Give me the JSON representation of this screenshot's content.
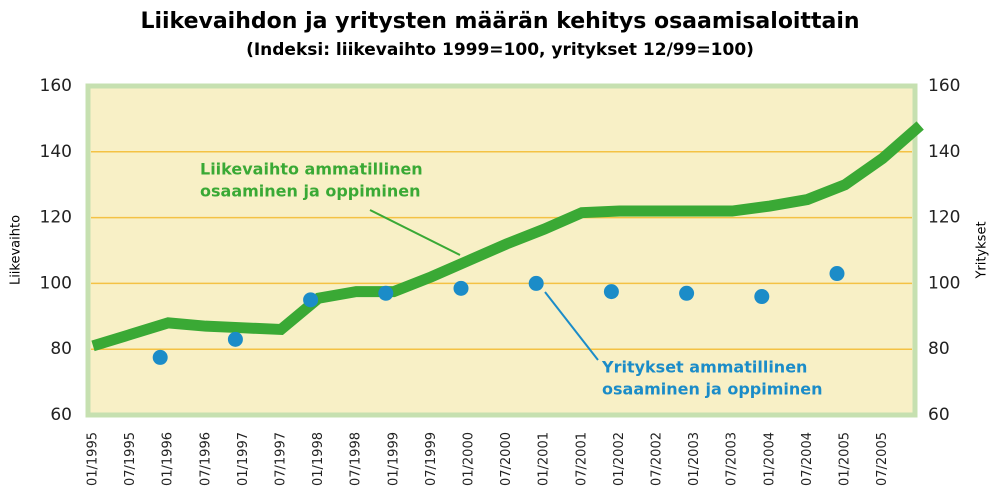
{
  "chart_data": {
    "type": "line",
    "title": "Liikevaihdon ja yritysten määrän kehitys osaamisaloittain",
    "subtitle": "(Indeksi: liikevaihto 1999=100, yritykset 12/99=100)",
    "y_label": "Liikevaihto",
    "y2_label": "Yritykset",
    "categories": [
      "01/1995",
      "07/1995",
      "01/1996",
      "07/1996",
      "01/1997",
      "07/1997",
      "01/1998",
      "07/1998",
      "01/1999",
      "07/1999",
      "01/2000",
      "07/2000",
      "01/2001",
      "07/2001",
      "01/2002",
      "07/2002",
      "01/2003",
      "07/2003",
      "01/2004",
      "07/2004",
      "01/2005",
      "07/2005",
      null
    ],
    "series": [
      {
        "name": "Liikevaihto ammatillinen osaaminen ja oppiminen",
        "color": "#3aa935",
        "values": [
          81,
          84.5,
          88,
          87,
          86.5,
          86,
          95.5,
          97.5,
          97.5,
          102,
          107,
          112,
          116.5,
          121.5,
          122,
          122,
          122,
          122,
          123.5,
          125.5,
          130,
          138,
          148
        ]
      },
      {
        "name": "Yritykset ammatillinen osaaminen ja oppiminen",
        "color": "#1b8cc8",
        "axis": "y2",
        "values": [
          null,
          null,
          77.5,
          null,
          83,
          null,
          95,
          null,
          97,
          null,
          98.5,
          null,
          100,
          null,
          97.5,
          null,
          97,
          null,
          96,
          null,
          103,
          null,
          null
        ]
      }
    ],
    "annotations": [
      {
        "text": [
          "Liikevaihto ammatillinen",
          "osaaminen ja oppiminen"
        ]
      },
      {
        "text": [
          "Yritykset ammatillinen",
          "osaaminen ja oppiminen"
        ]
      }
    ],
    "ylim": [
      60,
      160
    ],
    "yticks": [
      60,
      80,
      100,
      120,
      140,
      160
    ],
    "y2lim": [
      60,
      160
    ],
    "y2ticks": [
      60,
      80,
      100,
      120,
      140,
      160
    ],
    "grid": true
  }
}
